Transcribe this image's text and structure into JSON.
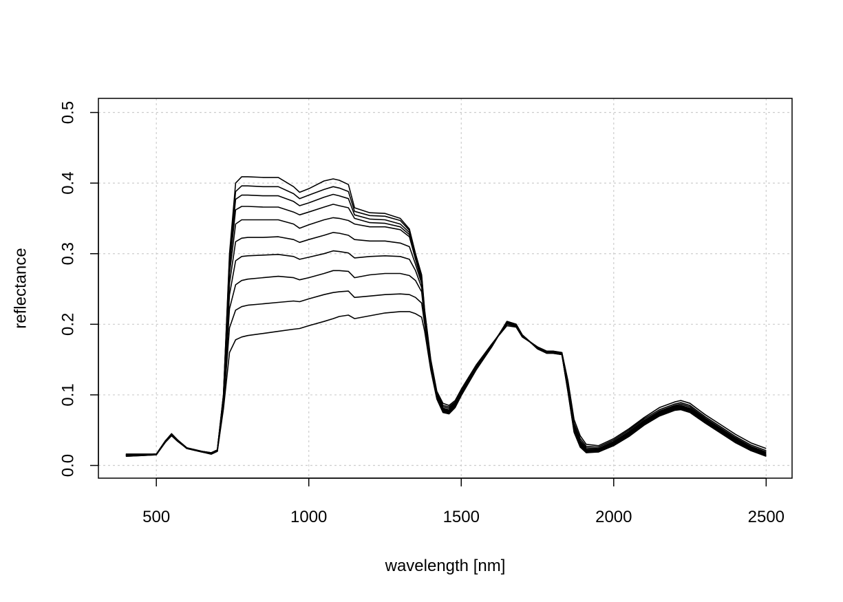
{
  "chart_data": {
    "type": "line",
    "title": "",
    "xlabel": "wavelength [nm]",
    "ylabel": "reflectance",
    "xlim": [
      310,
      2585
    ],
    "ylim": [
      -0.018,
      0.52
    ],
    "x_ticks": [
      500,
      1000,
      1500,
      2000,
      2500
    ],
    "x_tick_labels": [
      "500",
      "1000",
      "1500",
      "2000",
      "2500"
    ],
    "y_ticks": [
      0.0,
      0.1,
      0.2,
      0.3,
      0.4,
      0.5
    ],
    "y_tick_labels": [
      "0.0",
      "0.1",
      "0.2",
      "0.3",
      "0.4",
      "0.5"
    ],
    "grid": true,
    "line_color": "#000000",
    "x": [
      400,
      450,
      500,
      530,
      550,
      570,
      600,
      650,
      680,
      700,
      720,
      740,
      760,
      780,
      800,
      850,
      900,
      950,
      970,
      1000,
      1050,
      1080,
      1100,
      1130,
      1150,
      1200,
      1250,
      1300,
      1330,
      1350,
      1370,
      1380,
      1400,
      1420,
      1440,
      1460,
      1480,
      1500,
      1550,
      1600,
      1650,
      1680,
      1700,
      1750,
      1780,
      1800,
      1830,
      1850,
      1870,
      1890,
      1910,
      1950,
      2000,
      2050,
      2100,
      2150,
      2200,
      2220,
      2250,
      2300,
      2350,
      2400,
      2450,
      2500
    ],
    "series": [
      {
        "values": [
          0.016,
          0.016,
          0.016,
          0.035,
          0.045,
          0.036,
          0.025,
          0.02,
          0.018,
          0.022,
          0.1,
          0.3,
          0.4,
          0.409,
          0.409,
          0.408,
          0.408,
          0.395,
          0.387,
          0.392,
          0.403,
          0.406,
          0.404,
          0.398,
          0.365,
          0.358,
          0.357,
          0.35,
          0.335,
          0.3,
          0.27,
          0.22,
          0.15,
          0.105,
          0.088,
          0.085,
          0.092,
          0.108,
          0.143,
          0.172,
          0.198,
          0.196,
          0.182,
          0.168,
          0.162,
          0.162,
          0.16,
          0.12,
          0.065,
          0.042,
          0.03,
          0.028,
          0.038,
          0.052,
          0.068,
          0.082,
          0.09,
          0.092,
          0.088,
          0.072,
          0.058,
          0.044,
          0.032,
          0.024
        ]
      },
      {
        "values": [
          0.016,
          0.016,
          0.016,
          0.035,
          0.045,
          0.036,
          0.025,
          0.02,
          0.018,
          0.022,
          0.1,
          0.295,
          0.388,
          0.396,
          0.396,
          0.395,
          0.395,
          0.385,
          0.378,
          0.383,
          0.391,
          0.395,
          0.393,
          0.388,
          0.36,
          0.354,
          0.353,
          0.347,
          0.333,
          0.298,
          0.268,
          0.218,
          0.148,
          0.103,
          0.085,
          0.083,
          0.09,
          0.107,
          0.142,
          0.172,
          0.2,
          0.197,
          0.183,
          0.168,
          0.162,
          0.162,
          0.16,
          0.118,
          0.06,
          0.038,
          0.027,
          0.026,
          0.036,
          0.05,
          0.066,
          0.079,
          0.087,
          0.089,
          0.085,
          0.069,
          0.055,
          0.041,
          0.029,
          0.021
        ]
      },
      {
        "values": [
          0.015,
          0.015,
          0.016,
          0.035,
          0.044,
          0.036,
          0.025,
          0.02,
          0.018,
          0.022,
          0.098,
          0.29,
          0.377,
          0.383,
          0.383,
          0.382,
          0.382,
          0.374,
          0.368,
          0.372,
          0.38,
          0.384,
          0.382,
          0.378,
          0.355,
          0.349,
          0.348,
          0.342,
          0.33,
          0.296,
          0.266,
          0.216,
          0.147,
          0.102,
          0.083,
          0.081,
          0.089,
          0.106,
          0.141,
          0.171,
          0.201,
          0.198,
          0.183,
          0.167,
          0.161,
          0.161,
          0.159,
          0.116,
          0.057,
          0.035,
          0.025,
          0.024,
          0.034,
          0.048,
          0.064,
          0.077,
          0.085,
          0.087,
          0.083,
          0.067,
          0.053,
          0.039,
          0.027,
          0.019
        ]
      },
      {
        "values": [
          0.015,
          0.015,
          0.016,
          0.035,
          0.044,
          0.035,
          0.024,
          0.019,
          0.017,
          0.021,
          0.097,
          0.283,
          0.362,
          0.367,
          0.367,
          0.366,
          0.366,
          0.359,
          0.355,
          0.359,
          0.366,
          0.37,
          0.368,
          0.365,
          0.35,
          0.344,
          0.343,
          0.338,
          0.327,
          0.294,
          0.264,
          0.214,
          0.146,
          0.101,
          0.081,
          0.079,
          0.088,
          0.105,
          0.141,
          0.171,
          0.202,
          0.198,
          0.183,
          0.167,
          0.161,
          0.161,
          0.159,
          0.114,
          0.055,
          0.033,
          0.023,
          0.023,
          0.033,
          0.047,
          0.063,
          0.076,
          0.084,
          0.085,
          0.081,
          0.066,
          0.052,
          0.038,
          0.026,
          0.018
        ]
      },
      {
        "values": [
          0.015,
          0.015,
          0.016,
          0.035,
          0.044,
          0.035,
          0.024,
          0.019,
          0.017,
          0.021,
          0.095,
          0.272,
          0.342,
          0.348,
          0.348,
          0.348,
          0.348,
          0.342,
          0.336,
          0.341,
          0.348,
          0.351,
          0.35,
          0.347,
          0.342,
          0.338,
          0.338,
          0.334,
          0.324,
          0.292,
          0.262,
          0.212,
          0.145,
          0.1,
          0.08,
          0.078,
          0.087,
          0.104,
          0.14,
          0.17,
          0.202,
          0.199,
          0.184,
          0.167,
          0.16,
          0.16,
          0.158,
          0.112,
          0.053,
          0.031,
          0.022,
          0.022,
          0.032,
          0.046,
          0.062,
          0.075,
          0.083,
          0.084,
          0.08,
          0.065,
          0.051,
          0.037,
          0.025,
          0.017
        ]
      },
      {
        "values": [
          0.014,
          0.015,
          0.016,
          0.034,
          0.043,
          0.035,
          0.024,
          0.019,
          0.017,
          0.021,
          0.093,
          0.258,
          0.317,
          0.322,
          0.323,
          0.323,
          0.324,
          0.32,
          0.316,
          0.32,
          0.326,
          0.33,
          0.329,
          0.326,
          0.32,
          0.318,
          0.318,
          0.315,
          0.31,
          0.285,
          0.258,
          0.21,
          0.144,
          0.099,
          0.079,
          0.077,
          0.086,
          0.103,
          0.139,
          0.17,
          0.203,
          0.199,
          0.184,
          0.166,
          0.16,
          0.16,
          0.158,
          0.11,
          0.051,
          0.03,
          0.021,
          0.021,
          0.031,
          0.045,
          0.061,
          0.074,
          0.082,
          0.083,
          0.079,
          0.064,
          0.05,
          0.036,
          0.024,
          0.016
        ]
      },
      {
        "values": [
          0.014,
          0.015,
          0.016,
          0.034,
          0.043,
          0.035,
          0.024,
          0.019,
          0.017,
          0.021,
          0.091,
          0.242,
          0.29,
          0.296,
          0.297,
          0.298,
          0.299,
          0.296,
          0.292,
          0.295,
          0.3,
          0.304,
          0.303,
          0.301,
          0.294,
          0.296,
          0.297,
          0.296,
          0.292,
          0.276,
          0.252,
          0.208,
          0.143,
          0.098,
          0.078,
          0.076,
          0.085,
          0.102,
          0.139,
          0.169,
          0.203,
          0.199,
          0.184,
          0.166,
          0.16,
          0.16,
          0.158,
          0.108,
          0.05,
          0.029,
          0.02,
          0.02,
          0.03,
          0.044,
          0.06,
          0.073,
          0.081,
          0.082,
          0.078,
          0.063,
          0.049,
          0.035,
          0.023,
          0.015
        ]
      },
      {
        "values": [
          0.014,
          0.015,
          0.016,
          0.034,
          0.043,
          0.035,
          0.024,
          0.019,
          0.017,
          0.021,
          0.088,
          0.222,
          0.256,
          0.262,
          0.264,
          0.266,
          0.268,
          0.266,
          0.263,
          0.266,
          0.272,
          0.276,
          0.276,
          0.275,
          0.266,
          0.27,
          0.272,
          0.272,
          0.269,
          0.262,
          0.246,
          0.206,
          0.142,
          0.097,
          0.077,
          0.075,
          0.084,
          0.101,
          0.138,
          0.169,
          0.204,
          0.2,
          0.185,
          0.166,
          0.16,
          0.16,
          0.157,
          0.106,
          0.049,
          0.028,
          0.019,
          0.02,
          0.03,
          0.043,
          0.059,
          0.072,
          0.08,
          0.081,
          0.077,
          0.062,
          0.048,
          0.034,
          0.022,
          0.015
        ]
      },
      {
        "values": [
          0.013,
          0.014,
          0.015,
          0.034,
          0.043,
          0.035,
          0.024,
          0.019,
          0.016,
          0.02,
          0.084,
          0.195,
          0.22,
          0.225,
          0.227,
          0.229,
          0.231,
          0.233,
          0.232,
          0.236,
          0.242,
          0.245,
          0.246,
          0.247,
          0.238,
          0.24,
          0.242,
          0.243,
          0.242,
          0.238,
          0.23,
          0.2,
          0.14,
          0.096,
          0.076,
          0.074,
          0.083,
          0.1,
          0.137,
          0.168,
          0.204,
          0.2,
          0.185,
          0.166,
          0.159,
          0.159,
          0.157,
          0.105,
          0.048,
          0.027,
          0.019,
          0.019,
          0.029,
          0.042,
          0.058,
          0.071,
          0.079,
          0.08,
          0.076,
          0.061,
          0.047,
          0.033,
          0.021,
          0.014
        ]
      },
      {
        "values": [
          0.013,
          0.014,
          0.015,
          0.033,
          0.042,
          0.034,
          0.024,
          0.019,
          0.016,
          0.02,
          0.08,
          0.16,
          0.178,
          0.182,
          0.184,
          0.187,
          0.19,
          0.193,
          0.194,
          0.198,
          0.204,
          0.208,
          0.211,
          0.213,
          0.208,
          0.212,
          0.216,
          0.218,
          0.218,
          0.215,
          0.21,
          0.19,
          0.135,
          0.094,
          0.075,
          0.073,
          0.082,
          0.099,
          0.136,
          0.168,
          0.204,
          0.2,
          0.185,
          0.165,
          0.159,
          0.159,
          0.157,
          0.104,
          0.047,
          0.026,
          0.018,
          0.019,
          0.028,
          0.041,
          0.057,
          0.07,
          0.078,
          0.079,
          0.075,
          0.06,
          0.046,
          0.032,
          0.021,
          0.013
        ]
      }
    ]
  }
}
